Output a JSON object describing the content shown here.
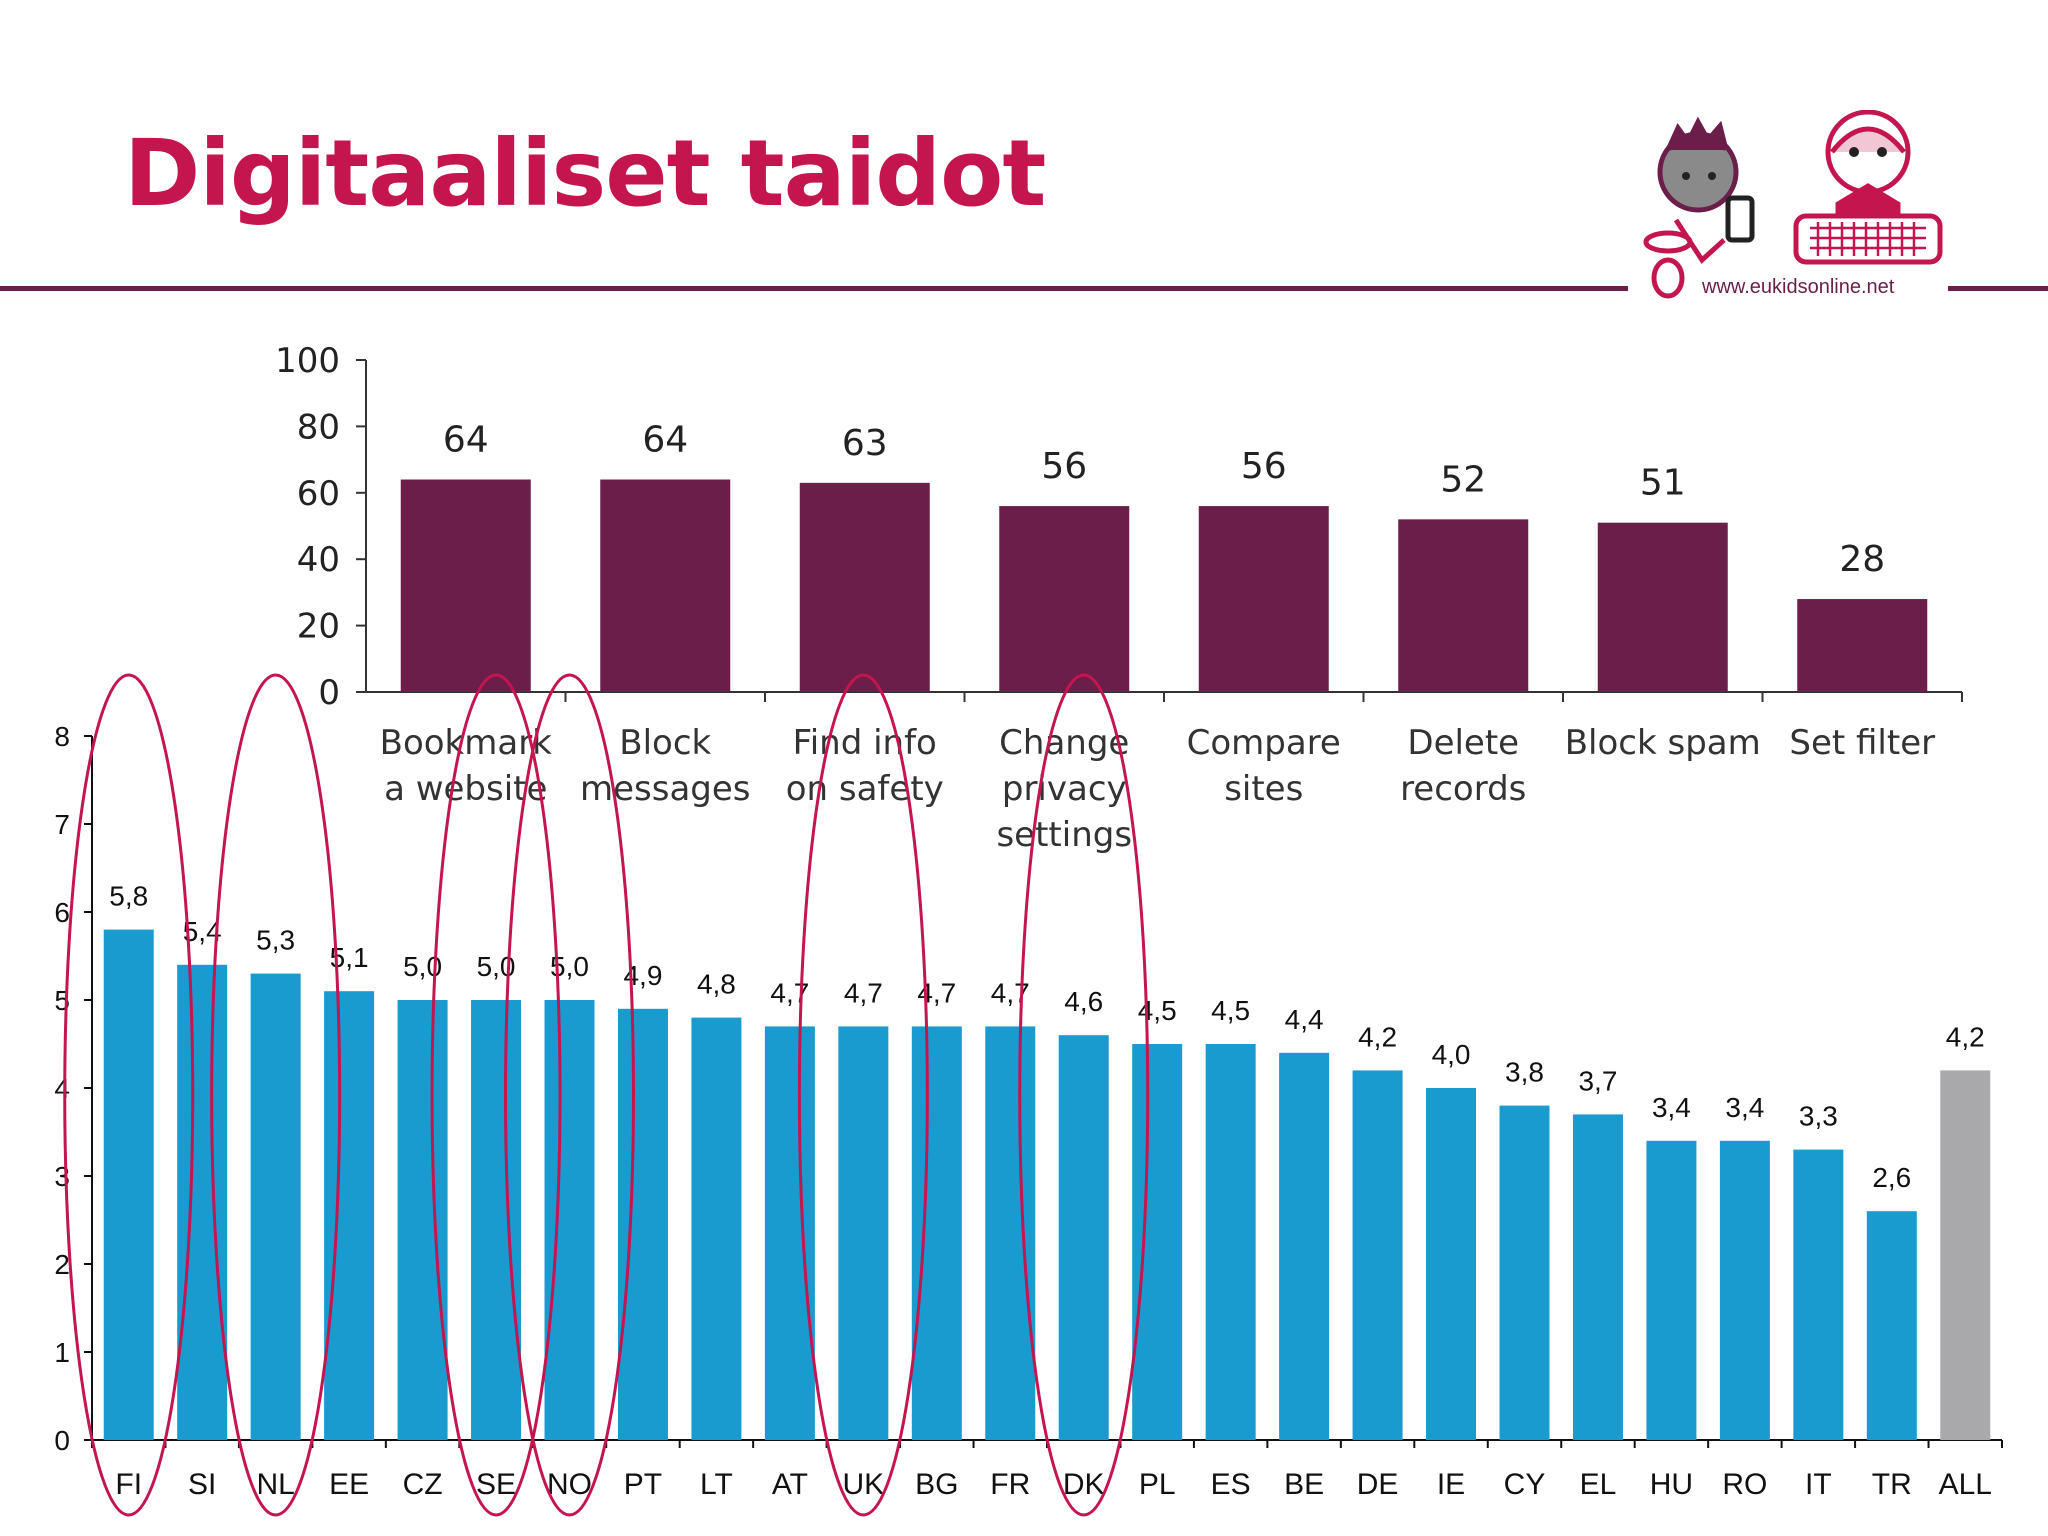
{
  "title": "Digitaaliset taidot",
  "logo": {
    "url_text": "www.eukidsonline.net"
  },
  "chart_data": [
    {
      "type": "bar",
      "categories": [
        [
          "Bookmark",
          "a website"
        ],
        [
          "Block",
          "messages"
        ],
        [
          "Find info",
          "on safety"
        ],
        [
          "Change",
          "privacy",
          "settings"
        ],
        [
          "Compare",
          "sites"
        ],
        [
          "Delete",
          "records"
        ],
        [
          "Block spam"
        ],
        [
          "Set filter"
        ]
      ],
      "values": [
        64,
        64,
        63,
        56,
        56,
        52,
        51,
        28
      ],
      "ylim": [
        0,
        100
      ],
      "yticks": [
        0,
        20,
        40,
        60,
        80,
        100
      ],
      "bar_color": "#6b1e4a",
      "grid": false
    },
    {
      "type": "bar",
      "categories": [
        "FI",
        "SI",
        "NL",
        "EE",
        "CZ",
        "SE",
        "NO",
        "PT",
        "LT",
        "AT",
        "UK",
        "BG",
        "FR",
        "DK",
        "PL",
        "ES",
        "BE",
        "DE",
        "IE",
        "CY",
        "EL",
        "HU",
        "RO",
        "IT",
        "TR",
        "ALL"
      ],
      "values": [
        5.8,
        5.4,
        5.3,
        5.1,
        5.0,
        5.0,
        5.0,
        4.9,
        4.8,
        4.7,
        4.7,
        4.7,
        4.7,
        4.6,
        4.5,
        4.5,
        4.4,
        4.2,
        4.0,
        3.8,
        3.7,
        3.4,
        3.4,
        3.3,
        2.6,
        4.2
      ],
      "value_labels": [
        "5,8",
        "5,4",
        "5,3",
        "5,1",
        "5,0",
        "5,0",
        "5,0",
        "4,9",
        "4,8",
        "4,7",
        "4,7",
        "4,7",
        "4,7",
        "4,6",
        "4,5",
        "4,5",
        "4,4",
        "4,2",
        "4,0",
        "3,8",
        "3,7",
        "3,4",
        "3,4",
        "3,3",
        "2,6",
        "4,2"
      ],
      "ylim": [
        0,
        8
      ],
      "yticks": [
        0,
        1,
        2,
        3,
        4,
        5,
        6,
        7,
        8
      ],
      "bar_color": "#1a9bd0",
      "highlight_bar_color": "#a9a9ab",
      "highlight_categories": [
        "ALL"
      ],
      "circled_categories": [
        "FI",
        "NL",
        "SE",
        "NO",
        "UK",
        "DK"
      ],
      "circle_color": "#c4154f",
      "grid": false
    }
  ]
}
